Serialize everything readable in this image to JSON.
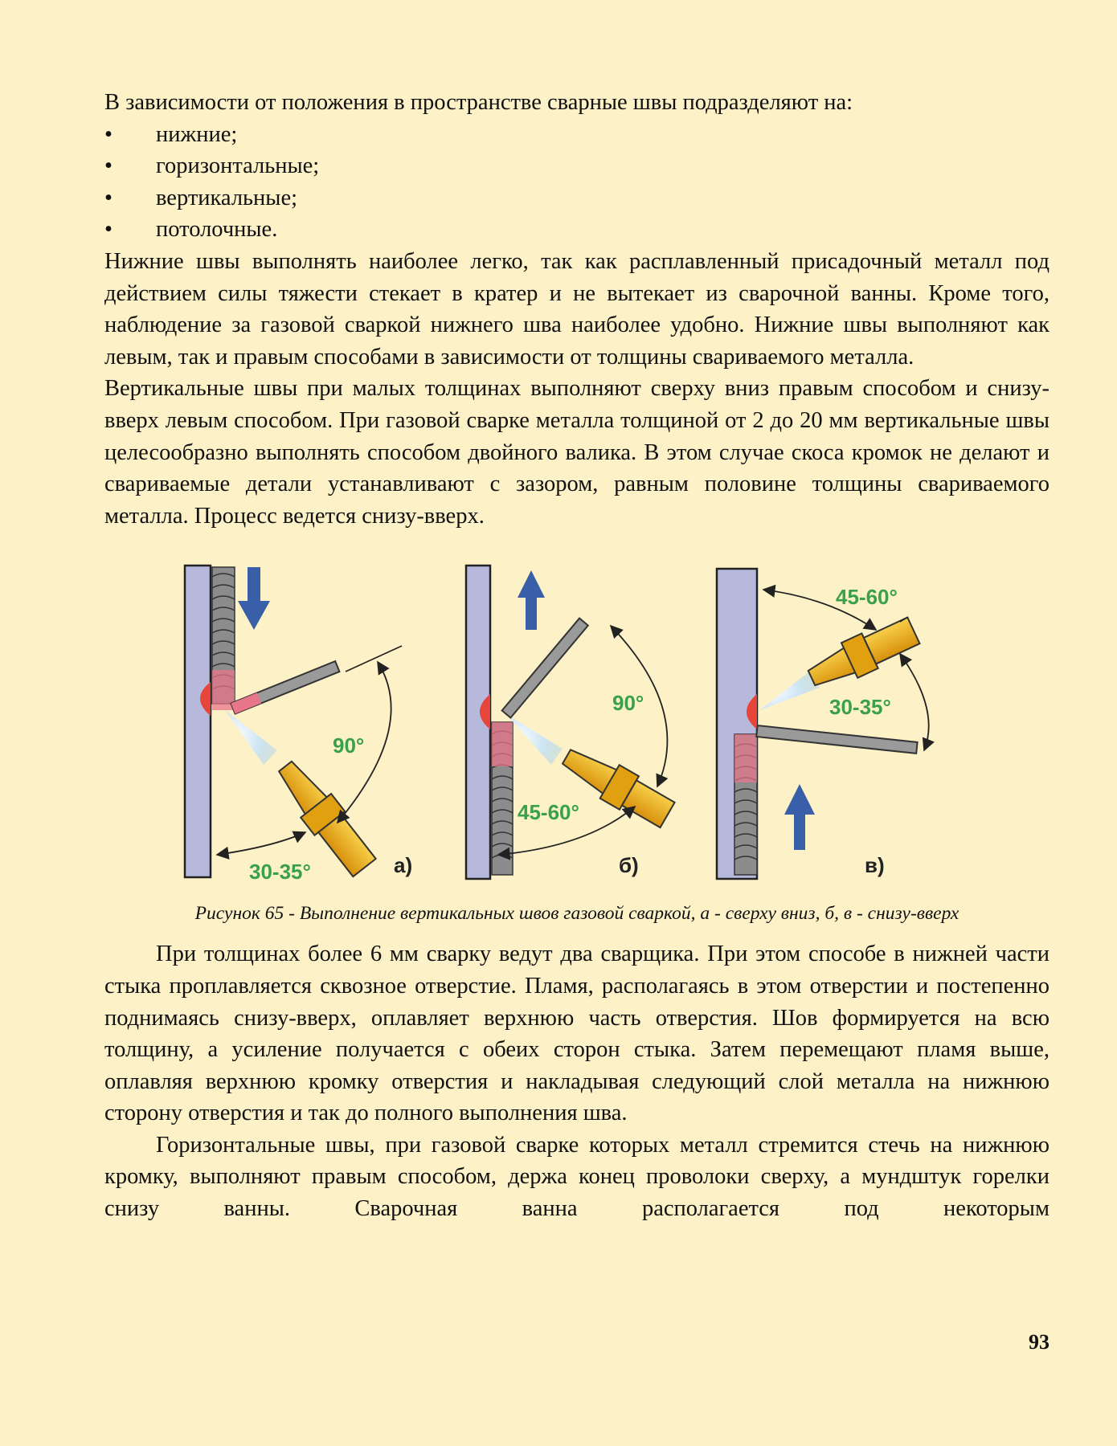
{
  "intro": "В зависимости от положения в пространстве сварные швы подразделяют на:",
  "list_items": [
    "нижние;",
    "горизонтальные;",
    "вертикальные;",
    "потолочные."
  ],
  "bullet": "•",
  "para1": "Нижние швы выполнять наиболее легко, так как расплавленный присадочный металл под действием силы тяжести стекает в кратер и не вытекает из сварочной ванны. Кроме того, наблюдение за газовой сваркой нижнего шва наиболее удобно. Нижние швы выполняют как левым, так и правым способами в зависимости от толщины свариваемого металла.",
  "para2": "Вертикальные швы при малых толщинах выполняют сверху вниз правым способом и снизу-вверх левым способом. При газовой сварке металла толщиной от 2 до 20 мм вертикальные швы целесообразно выполнять способом двойного валика. В этом случае скоса кромок не делают и свариваемые детали устанавливают с зазором, равным половине толщины свариваемого металла. Процесс ведется снизу-вверх.",
  "figure": {
    "a": {
      "label": "а)",
      "angle_upper": "90°",
      "angle_lower": "30-35°"
    },
    "b": {
      "label": "б)",
      "angle_upper": "90°",
      "angle_lower": "45-60°"
    },
    "c": {
      "label": "в)",
      "angle_upper": "45-60°",
      "angle_lower": "30-35°"
    },
    "colors": {
      "plate": "#b7b9dc",
      "arrow": "#3a5fa9",
      "torch": "#e8a512",
      "angle_text": "#3aa04a",
      "flame": "#e8453a",
      "rod": "#9a9a9a"
    }
  },
  "caption": "Рисунок 65 - Выполнение вертикальных швов газовой сваркой, а - сверху вниз, б, в - снизу-вверх",
  "para3": "При толщинах более 6 мм сварку ведут два сварщика. При этом способе в нижней части стыка проплавляется сквозное отверстие. Пламя, располагаясь в этом отверстии и постепенно поднимаясь снизу-вверх, оплавляет верхнюю часть отверстия. Шов формируется на всю толщину, а усиление получается с обеих сторон стыка. Затем перемещают пламя выше, оплавляя верхнюю кромку отверстия и накладывая следующий слой металла на нижнюю сторону отверстия и так до полного выполнения шва.",
  "para4": "Горизонтальные швы, при газовой сварке которых металл стремится стечь на нижнюю кромку, выполняют правым способом, держа конец проволоки сверху, а мундштук горелки снизу ванны. Сварочная ванна располагается под некоторым",
  "page_number": "93"
}
